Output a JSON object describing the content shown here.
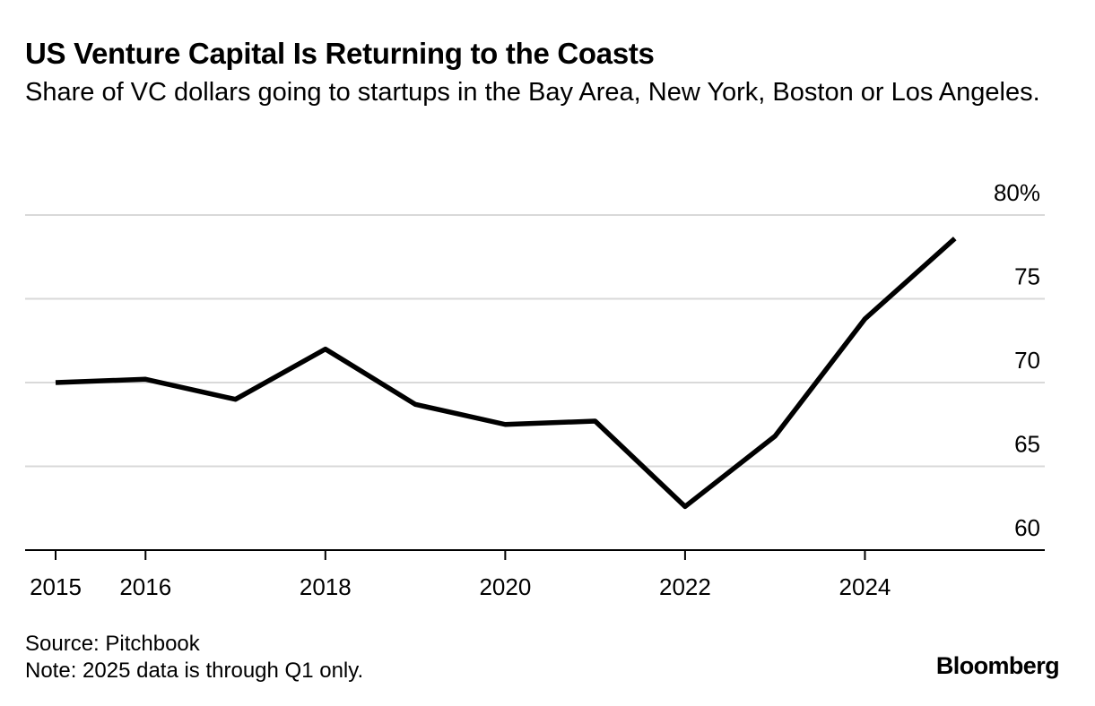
{
  "header": {
    "title": "US Venture Capital Is Returning to the Coasts",
    "subtitle": "Share of VC dollars going to startups in the Bay Area, New York, Boston or Los Angeles."
  },
  "footer": {
    "source": "Source: Pitchbook",
    "note": "Note: 2025 data is through Q1 only.",
    "brand": "Bloomberg"
  },
  "colors": {
    "line": "#000000",
    "grid": "#d9d9d9",
    "axis": "#000000"
  },
  "chart_data": {
    "type": "line",
    "title": "US Venture Capital Is Returning to the Coasts",
    "subtitle": "Share of VC dollars going to startups in the Bay Area, New York, Boston or Los Angeles.",
    "x": [
      2015,
      2016,
      2017,
      2018,
      2019,
      2020,
      2021,
      2022,
      2023,
      2024,
      2025
    ],
    "series": [
      {
        "values": [
          70.0,
          70.2,
          69.0,
          72.0,
          68.7,
          67.5,
          67.7,
          62.6,
          66.8,
          73.8,
          78.6
        ]
      }
    ],
    "xlim": [
      2015,
      2026
    ],
    "ylim": [
      60,
      80
    ],
    "x_ticks": [
      2015,
      2016,
      2018,
      2020,
      2022,
      2024
    ],
    "x_tick_labels": [
      "2015",
      "2016",
      "2018",
      "2020",
      "2022",
      "2024"
    ],
    "y_ticks": [
      80,
      75,
      70,
      65,
      60
    ],
    "y_tick_labels": [
      "80%",
      "75",
      "70",
      "65",
      "60"
    ],
    "grid": true,
    "y_axis_side": "right"
  }
}
